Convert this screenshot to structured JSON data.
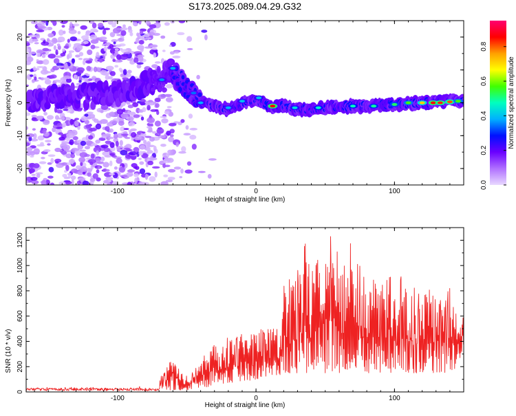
{
  "figure": {
    "title": "S173.2025.089.04.29.G32"
  },
  "chart_data": [
    {
      "type": "heatmap",
      "title": "S173.2025.089.04.29.G32",
      "xlabel": "Height of straight line (km)",
      "ylabel": "Frequency (Hz)",
      "xlim": [
        -166,
        150
      ],
      "ylim": [
        -25,
        25
      ],
      "xticks": [
        -100,
        0,
        100
      ],
      "yticks": [
        -20,
        -10,
        0,
        10,
        20
      ],
      "grid": false,
      "colorbar": {
        "label": "Normalized spectral amplitude",
        "range": [
          0,
          0.95
        ],
        "ticks": [
          0.0,
          0.2,
          0.4,
          0.6,
          0.8
        ],
        "colormap": "rainbow (white-violet-blue-cyan-green-yellow-orange-red-magenta)",
        "colors": [
          "#e8d8ff",
          "#b070ff",
          "#6a00ff",
          "#0010ff",
          "#00b0ff",
          "#00ffc0",
          "#40ff00",
          "#ffff00",
          "#ffa000",
          "#ff0000",
          "#ff0070"
        ]
      },
      "ridge": {
        "description": "frequency of peak amplitude versus height",
        "x": [
          -166,
          -140,
          -120,
          -100,
          -85,
          -70,
          -60,
          -50,
          -45,
          -40,
          -35,
          -30,
          -20,
          -10,
          0,
          10,
          20,
          30,
          40,
          60,
          80,
          100,
          120,
          140,
          150
        ],
        "y": [
          0,
          2,
          2,
          3,
          5,
          7,
          10,
          4,
          2,
          0,
          0,
          -1,
          -2,
          0,
          1,
          -1,
          -1,
          -2,
          -2,
          -1,
          -1,
          -0.5,
          0,
          0.5,
          0.5
        ]
      },
      "scatter_region": {
        "description": "scattered low-amplitude noise",
        "x_range": [
          -166,
          -50
        ],
        "y_range": [
          -25,
          25
        ]
      }
    },
    {
      "type": "line",
      "xlabel": "Height of straight line (km)",
      "ylabel": "SNR (10 * v/v)",
      "xlim": [
        -166,
        150
      ],
      "ylim": [
        0,
        1300
      ],
      "xticks": [
        -100,
        0,
        100
      ],
      "yticks": [
        0,
        200,
        400,
        600,
        800,
        1000,
        1200
      ],
      "grid": false,
      "series": [
        {
          "color": "#ee2222",
          "envelope": {
            "x": [
              -166,
              -120,
              -90,
              -70,
              -65,
              -60,
              -57,
              -52,
              -45,
              -40,
              -35,
              -30,
              -25,
              -20,
              -15,
              -10,
              -5,
              0,
              5,
              10,
              15,
              18,
              20,
              25,
              30,
              35,
              40,
              45,
              50,
              55,
              60,
              65,
              70,
              75,
              80,
              85,
              90,
              95,
              100,
              105,
              110,
              115,
              120,
              125,
              130,
              135,
              140,
              145,
              150
            ],
            "upper": [
              40,
              40,
              45,
              100,
              180,
              330,
              260,
              120,
              170,
              240,
              330,
              380,
              420,
              440,
              460,
              480,
              450,
              470,
              520,
              560,
              520,
              500,
              850,
              900,
              960,
              1200,
              1000,
              1100,
              1150,
              1290,
              1050,
              1000,
              1270,
              1000,
              900,
              900,
              850,
              1050,
              750,
              950,
              750,
              870,
              720,
              850,
              800,
              700,
              860,
              620,
              600
            ],
            "lower": [
              8,
              8,
              8,
              10,
              15,
              15,
              15,
              15,
              20,
              30,
              40,
              50,
              60,
              70,
              80,
              90,
              90,
              100,
              110,
              110,
              110,
              120,
              150,
              150,
              150,
              150,
              150,
              150,
              150,
              150,
              150,
              150,
              150,
              150,
              150,
              150,
              150,
              150,
              150,
              150,
              150,
              150,
              150,
              150,
              150,
              150,
              150,
              200,
              350
            ]
          }
        }
      ]
    }
  ]
}
